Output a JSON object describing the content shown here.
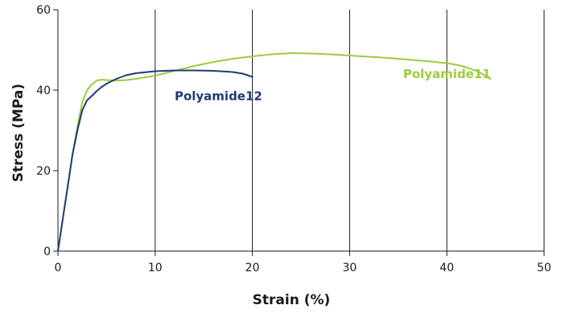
{
  "chart_data": {
    "type": "line",
    "title": "",
    "xlabel": "Strain (%)",
    "ylabel": "Stress (MPa)",
    "xlim": [
      0,
      50
    ],
    "ylim": [
      0,
      60
    ],
    "xticks": [
      "0",
      "10",
      "20",
      "30",
      "40",
      "50"
    ],
    "yticks": [
      "0",
      "20",
      "40",
      "60"
    ],
    "grid": "vertical",
    "legend": "inline labels",
    "series": [
      {
        "name": "Polyamide11",
        "color": "#9ccc3c",
        "x": [
          0,
          0.5,
          1,
          1.5,
          2,
          2.5,
          3,
          3.5,
          4,
          4.5,
          5,
          6,
          7,
          8,
          10,
          12,
          14,
          16,
          18,
          20,
          22,
          24,
          26,
          28,
          30,
          32,
          34,
          36,
          38,
          40,
          41,
          42,
          43,
          44,
          44.5
        ],
        "y": [
          0,
          8,
          16,
          24,
          31,
          37,
          40,
          41.5,
          42.4,
          42.6,
          42.5,
          42.4,
          42.5,
          42.8,
          43.6,
          44.8,
          46,
          47,
          47.8,
          48.4,
          48.9,
          49.2,
          49.1,
          48.9,
          48.6,
          48.3,
          48,
          47.6,
          47.2,
          46.7,
          46.3,
          45.7,
          44.8,
          43.6,
          42.8
        ]
      },
      {
        "name": "Polyamide12",
        "color": "#1f3c78",
        "x": [
          0,
          0.5,
          1,
          1.5,
          2,
          2.5,
          3,
          3.5,
          4,
          4.5,
          5,
          6,
          7,
          8,
          10,
          12,
          14,
          16,
          18,
          19,
          20
        ],
        "y": [
          0,
          8,
          16,
          24,
          30,
          35,
          37.5,
          38.6,
          39.8,
          40.8,
          41.6,
          42.8,
          43.7,
          44.2,
          44.7,
          44.9,
          44.9,
          44.8,
          44.5,
          44.1,
          43.3
        ]
      }
    ],
    "annotations": [
      {
        "text": "Polyamide12",
        "series": "Polyamide12",
        "x": 12,
        "y": 37.5
      },
      {
        "text": "Polyamide11",
        "series": "Polyamide11",
        "x": 35.5,
        "y": 43
      }
    ]
  }
}
